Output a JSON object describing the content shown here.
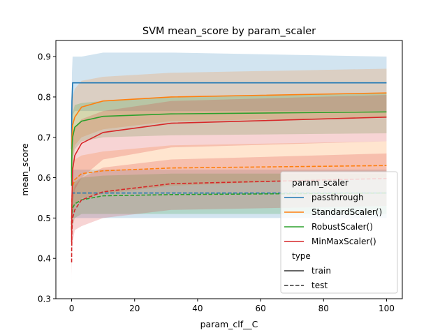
{
  "chart_data": {
    "type": "line",
    "title": "SVM mean_score by param_scaler",
    "xlabel": "param_clf__C",
    "ylabel": "mean_score",
    "xlim": [
      -5,
      105
    ],
    "ylim": [
      0.3,
      0.94
    ],
    "xticks": [
      0,
      20,
      40,
      60,
      80,
      100
    ],
    "yticks": [
      0.3,
      0.4,
      0.5,
      0.6,
      0.7,
      0.8,
      0.9
    ],
    "ytick_labels": [
      "0.3",
      "0.4",
      "0.5",
      "0.6",
      "0.7",
      "0.8",
      "0.9"
    ],
    "grid": false,
    "legend": {
      "position": "lower-right",
      "hue_title": "param_scaler",
      "style_title": "type",
      "hue_entries": [
        "passthrough",
        "StandardScaler()",
        "RobustScaler()",
        "MinMaxScaler()"
      ],
      "style_entries": [
        "train",
        "test"
      ]
    },
    "x": [
      0.001,
      0.01,
      0.1,
      0.316,
      1,
      3.16,
      10,
      31.6,
      100
    ],
    "series": [
      {
        "name": "passthrough",
        "type": "train",
        "color": "#1f77b4",
        "values": [
          0.67,
          0.72,
          0.79,
          0.835,
          0.835,
          0.835,
          0.835,
          0.835,
          0.835
        ],
        "ci_low": [
          0.62,
          0.65,
          0.7,
          0.755,
          0.765,
          0.765,
          0.765,
          0.765,
          0.765
        ],
        "ci_high": [
          0.72,
          0.78,
          0.86,
          0.9,
          0.9,
          0.9,
          0.91,
          0.91,
          0.9
        ]
      },
      {
        "name": "passthrough",
        "type": "test",
        "color": "#1f77b4",
        "values": [
          0.56,
          0.56,
          0.56,
          0.562,
          0.562,
          0.562,
          0.562,
          0.562,
          0.562
        ],
        "ci_low": [
          0.5,
          0.5,
          0.5,
          0.5,
          0.5,
          0.5,
          0.5,
          0.5,
          0.5
        ],
        "ci_high": [
          0.62,
          0.62,
          0.62,
          0.62,
          0.62,
          0.62,
          0.62,
          0.62,
          0.62
        ]
      },
      {
        "name": "StandardScaler()",
        "type": "train",
        "color": "#ff7f0e",
        "values": [
          0.6,
          0.64,
          0.7,
          0.73,
          0.75,
          0.775,
          0.79,
          0.8,
          0.81
        ],
        "ci_low": [
          0.5,
          0.54,
          0.6,
          0.65,
          0.68,
          0.7,
          0.72,
          0.74,
          0.75
        ],
        "ci_high": [
          0.7,
          0.74,
          0.78,
          0.8,
          0.82,
          0.84,
          0.85,
          0.86,
          0.87
        ]
      },
      {
        "name": "StandardScaler()",
        "type": "test",
        "color": "#ff7f0e",
        "values": [
          0.47,
          0.5,
          0.55,
          0.58,
          0.595,
          0.61,
          0.617,
          0.624,
          0.63
        ],
        "ci_low": [
          0.4,
          0.43,
          0.48,
          0.51,
          0.53,
          0.55,
          0.56,
          0.58,
          0.6
        ],
        "ci_high": [
          0.55,
          0.57,
          0.61,
          0.63,
          0.645,
          0.655,
          0.665,
          0.68,
          0.69
        ]
      },
      {
        "name": "RobustScaler()",
        "type": "train",
        "color": "#2ca02c",
        "values": [
          0.58,
          0.62,
          0.67,
          0.7,
          0.725,
          0.74,
          0.752,
          0.758,
          0.763
        ],
        "ci_low": [
          0.5,
          0.54,
          0.6,
          0.64,
          0.67,
          0.69,
          0.7,
          0.705,
          0.71
        ],
        "ci_high": [
          0.66,
          0.7,
          0.73,
          0.76,
          0.78,
          0.785,
          0.79,
          0.8,
          0.81
        ]
      },
      {
        "name": "RobustScaler()",
        "type": "test",
        "color": "#2ca02c",
        "values": [
          0.47,
          0.49,
          0.51,
          0.525,
          0.535,
          0.545,
          0.555,
          0.558,
          0.562
        ],
        "ci_low": [
          0.4,
          0.43,
          0.46,
          0.48,
          0.5,
          0.51,
          0.51,
          0.51,
          0.51
        ],
        "ci_high": [
          0.54,
          0.56,
          0.57,
          0.58,
          0.59,
          0.6,
          0.605,
          0.61,
          0.61
        ]
      },
      {
        "name": "MinMaxScaler()",
        "type": "train",
        "color": "#d62728",
        "values": [
          0.44,
          0.48,
          0.55,
          0.62,
          0.655,
          0.685,
          0.712,
          0.735,
          0.75
        ],
        "ci_low": [
          0.35,
          0.38,
          0.46,
          0.53,
          0.57,
          0.6,
          0.645,
          0.675,
          0.69
        ],
        "ci_high": [
          0.52,
          0.57,
          0.63,
          0.69,
          0.725,
          0.745,
          0.765,
          0.79,
          0.805
        ]
      },
      {
        "name": "MinMaxScaler()",
        "type": "test",
        "color": "#d62728",
        "values": [
          0.39,
          0.42,
          0.47,
          0.5,
          0.52,
          0.545,
          0.565,
          0.585,
          0.598
        ],
        "ci_low": [
          0.33,
          0.36,
          0.41,
          0.44,
          0.47,
          0.48,
          0.5,
          0.52,
          0.53
        ],
        "ci_high": [
          0.45,
          0.48,
          0.53,
          0.56,
          0.58,
          0.6,
          0.625,
          0.645,
          0.66
        ]
      }
    ]
  }
}
